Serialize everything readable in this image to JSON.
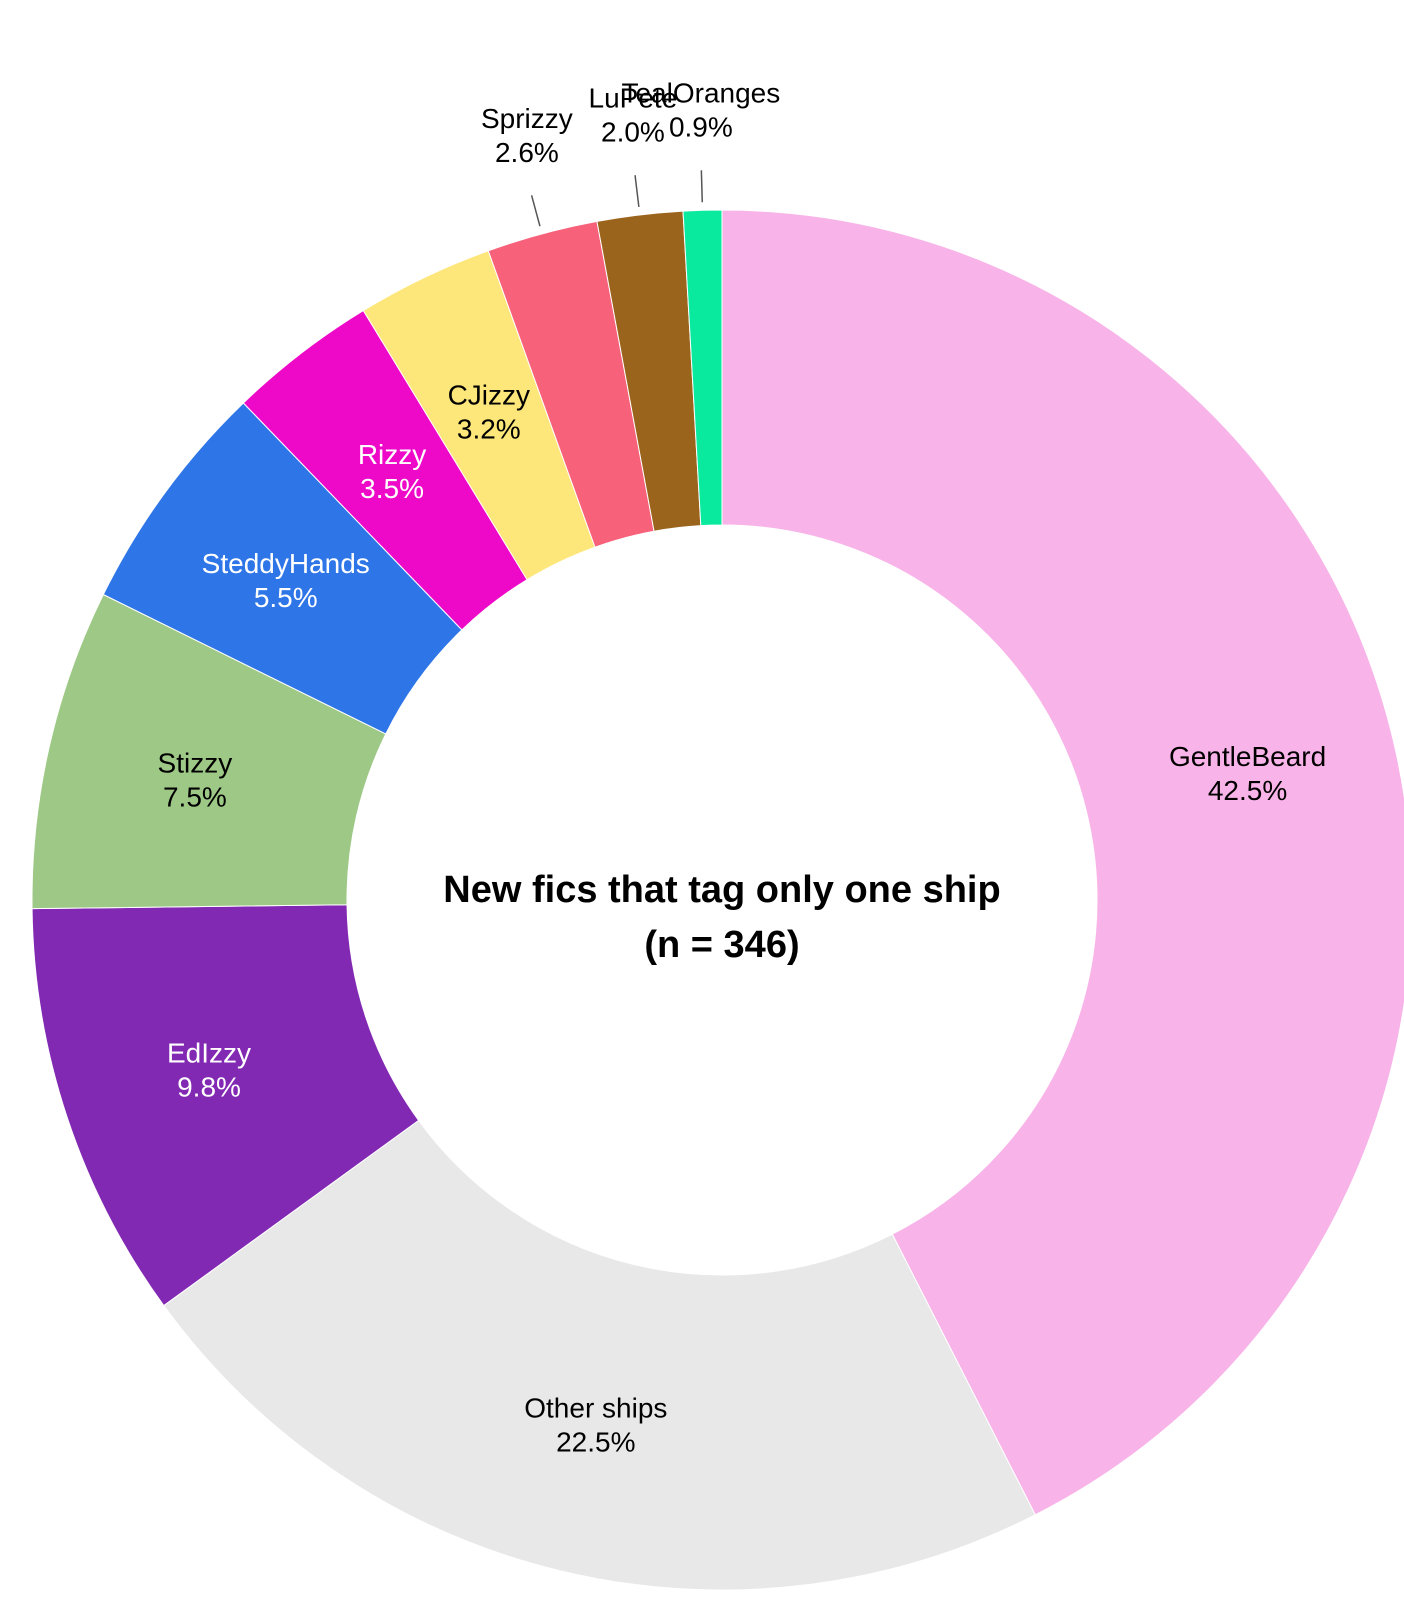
{
  "chart_data": {
    "type": "pie",
    "style": "donut",
    "title": "New fics that tag only one ship",
    "subtitle": "(n = 346)",
    "slices": [
      {
        "name": "GentleBeard",
        "value": 42.5,
        "value_label": "42.5%",
        "color": "#f8b4e8",
        "label_color": "#000000"
      },
      {
        "name": "Other ships",
        "value": 22.5,
        "value_label": "22.5%",
        "color": "#e8e8e8",
        "label_color": "#000000"
      },
      {
        "name": "EdIzzy",
        "value": 9.8,
        "value_label": "9.8%",
        "color": "#8229b3",
        "label_color": "#ffffff"
      },
      {
        "name": "Stizzy",
        "value": 7.5,
        "value_label": "7.5%",
        "color": "#9dc885",
        "label_color": "#000000"
      },
      {
        "name": "SteddyHands",
        "value": 5.5,
        "value_label": "5.5%",
        "color": "#2e75e8",
        "label_color": "#ffffff"
      },
      {
        "name": "Rizzy",
        "value": 3.5,
        "value_label": "3.5%",
        "color": "#ee08c8",
        "label_color": "#ffffff"
      },
      {
        "name": "CJizzy",
        "value": 3.2,
        "value_label": "3.2%",
        "color": "#fde67a",
        "label_color": "#000000"
      },
      {
        "name": "Sprizzy",
        "value": 2.6,
        "value_label": "2.6%",
        "color": "#f7617a",
        "label_color": "#000000"
      },
      {
        "name": "LuPete",
        "value": 2.0,
        "value_label": "2.0%",
        "color": "#9b641d",
        "label_color": "#000000"
      },
      {
        "name": "TealOranges",
        "value": 0.9,
        "value_label": "0.9%",
        "color": "#0aea9e",
        "label_color": "#000000"
      }
    ]
  }
}
